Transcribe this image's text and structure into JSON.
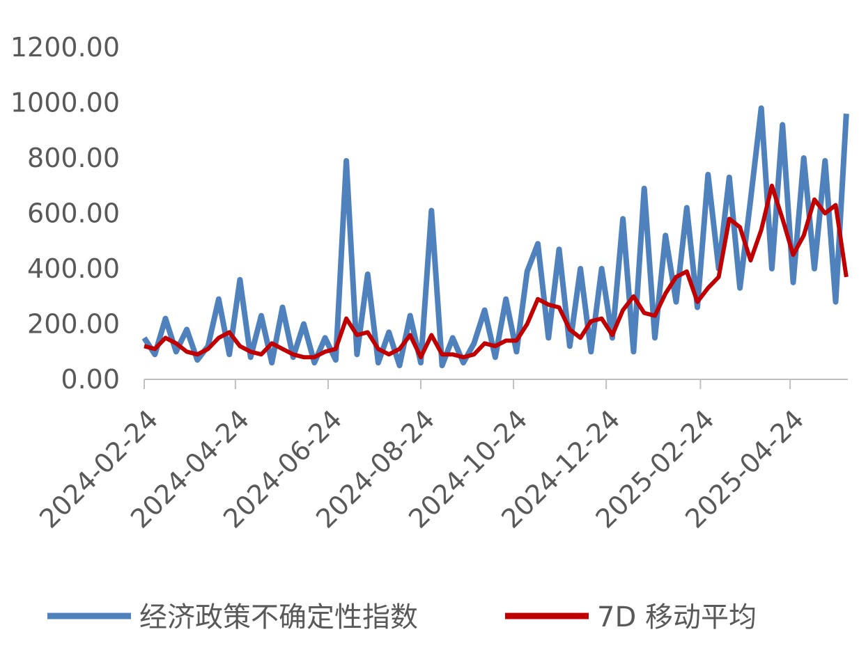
{
  "chart_data": {
    "type": "line",
    "x": [
      "2024-02-24",
      "2024-03-02",
      "2024-03-09",
      "2024-03-16",
      "2024-03-23",
      "2024-03-30",
      "2024-04-06",
      "2024-04-13",
      "2024-04-20",
      "2024-04-27",
      "2024-05-04",
      "2024-05-11",
      "2024-05-18",
      "2024-05-25",
      "2024-06-01",
      "2024-06-08",
      "2024-06-15",
      "2024-06-22",
      "2024-06-29",
      "2024-07-06",
      "2024-07-13",
      "2024-07-20",
      "2024-07-27",
      "2024-08-03",
      "2024-08-10",
      "2024-08-17",
      "2024-08-24",
      "2024-08-31",
      "2024-09-07",
      "2024-09-14",
      "2024-09-21",
      "2024-09-28",
      "2024-10-05",
      "2024-10-12",
      "2024-10-19",
      "2024-10-26",
      "2024-11-02",
      "2024-11-09",
      "2024-11-16",
      "2024-11-23",
      "2024-11-30",
      "2024-12-07",
      "2024-12-14",
      "2024-12-21",
      "2024-12-28",
      "2025-01-04",
      "2025-01-11",
      "2025-01-18",
      "2025-01-25",
      "2025-02-01",
      "2025-02-08",
      "2025-02-15",
      "2025-02-22",
      "2025-03-01",
      "2025-03-08",
      "2025-03-15",
      "2025-03-22",
      "2025-03-29",
      "2025-04-05",
      "2025-04-12",
      "2025-04-19",
      "2025-04-26",
      "2025-05-03",
      "2025-05-10",
      "2025-05-17",
      "2025-05-24",
      "2025-05-31"
    ],
    "series": [
      {
        "name": "经济政策不确定性指数",
        "color": "#4f81bd",
        "values": [
          150,
          90,
          220,
          100,
          180,
          70,
          120,
          290,
          90,
          360,
          80,
          230,
          60,
          260,
          80,
          200,
          60,
          150,
          70,
          790,
          90,
          380,
          60,
          170,
          50,
          230,
          60,
          610,
          50,
          150,
          60,
          130,
          250,
          80,
          290,
          100,
          390,
          490,
          150,
          470,
          120,
          400,
          100,
          400,
          150,
          580,
          100,
          690,
          150,
          520,
          280,
          620,
          260,
          740,
          400,
          730,
          330,
          650,
          980,
          400,
          920,
          350,
          800,
          400,
          790,
          280,
          960
        ]
      },
      {
        "name": "7D 移动平均",
        "color": "#c00000",
        "values": [
          120,
          110,
          150,
          130,
          100,
          90,
          110,
          150,
          170,
          120,
          100,
          90,
          130,
          110,
          90,
          80,
          80,
          100,
          110,
          220,
          160,
          170,
          110,
          90,
          110,
          160,
          80,
          160,
          90,
          90,
          80,
          90,
          130,
          120,
          140,
          140,
          200,
          290,
          270,
          260,
          180,
          150,
          210,
          220,
          160,
          250,
          300,
          240,
          230,
          310,
          370,
          390,
          280,
          330,
          370,
          580,
          550,
          430,
          540,
          700,
          580,
          450,
          520,
          650,
          600,
          630,
          370
        ]
      }
    ],
    "xlim": [
      "2024-02-24",
      "2025-06-01"
    ],
    "xticks": [
      "2024-02-24",
      "2024-04-24",
      "2024-06-24",
      "2024-08-24",
      "2024-10-24",
      "2024-12-24",
      "2025-02-24",
      "2025-04-24"
    ],
    "ylim": [
      0,
      1200
    ],
    "yticks": [
      {
        "value": 0,
        "label": "0.00"
      },
      {
        "value": 200,
        "label": "200.00"
      },
      {
        "value": 400,
        "label": "400.00"
      },
      {
        "value": 600,
        "label": "600.00"
      },
      {
        "value": 800,
        "label": "800.00"
      },
      {
        "value": 1000,
        "label": "1000.00"
      },
      {
        "value": 1200,
        "label": "1200.00"
      }
    ],
    "grid": false,
    "legend": "bottom"
  }
}
